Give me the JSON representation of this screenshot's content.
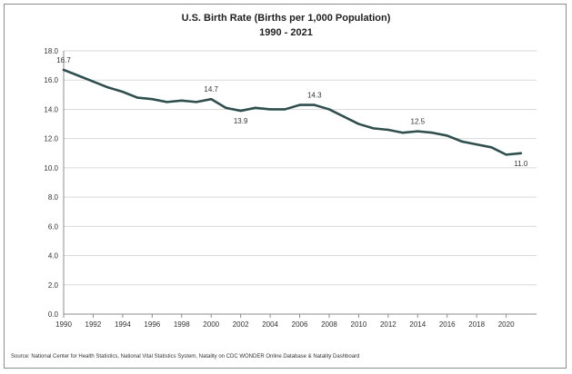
{
  "chart_data": {
    "type": "line",
    "title": "U.S. Birth Rate (Births per 1,000 Population)",
    "subtitle": "1990 - 2021",
    "xlabel": "",
    "ylabel": "",
    "xlim": [
      1990,
      2021
    ],
    "ylim": [
      0,
      18
    ],
    "x_ticks": [
      "1990",
      "1992",
      "1994",
      "1996",
      "1998",
      "2000",
      "2002",
      "2004",
      "2006",
      "2008",
      "2010",
      "2012",
      "2014",
      "2016",
      "2018",
      "2020"
    ],
    "y_ticks": [
      "0.0",
      "2.0",
      "4.0",
      "6.0",
      "8.0",
      "10.0",
      "12.0",
      "14.0",
      "16.0",
      "18.0"
    ],
    "grid": "horizontal",
    "color": "#2f4f4f",
    "series": [
      {
        "x": [
          1990,
          1991,
          1992,
          1993,
          1994,
          1995,
          1996,
          1997,
          1998,
          1999,
          2000,
          2001,
          2002,
          2003,
          2004,
          2005,
          2006,
          2007,
          2008,
          2009,
          2010,
          2011,
          2012,
          2013,
          2014,
          2015,
          2016,
          2017,
          2018,
          2019,
          2020,
          2021
        ],
        "values": [
          16.7,
          16.3,
          15.9,
          15.5,
          15.2,
          14.8,
          14.7,
          14.5,
          14.6,
          14.5,
          14.7,
          14.1,
          13.9,
          14.1,
          14.0,
          14.0,
          14.3,
          14.3,
          14.0,
          13.5,
          13.0,
          12.7,
          12.6,
          12.4,
          12.5,
          12.4,
          12.2,
          11.8,
          11.6,
          11.4,
          10.9,
          11.0
        ]
      }
    ],
    "data_labels": [
      {
        "x": 1990,
        "y": 16.7,
        "text": "16.7",
        "pos": "above"
      },
      {
        "x": 2000,
        "y": 14.7,
        "text": "14.7",
        "pos": "above"
      },
      {
        "x": 2002,
        "y": 13.9,
        "text": "13.9",
        "pos": "below"
      },
      {
        "x": 2007,
        "y": 14.3,
        "text": "14.3",
        "pos": "above"
      },
      {
        "x": 2014,
        "y": 12.5,
        "text": "12.5",
        "pos": "above"
      },
      {
        "x": 2021,
        "y": 11.0,
        "text": "11.0",
        "pos": "below"
      }
    ]
  },
  "source": "Source: National Center for Health Statistics, National Vital Statistics System, Natality on CDC WONDER Online Database & Natality Dashboard"
}
